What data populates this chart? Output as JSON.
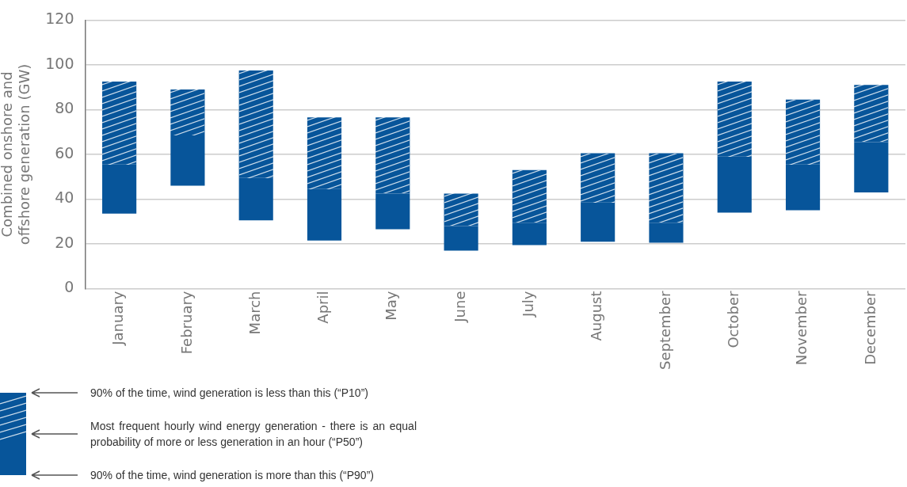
{
  "chart_data": {
    "type": "bar",
    "ylabel": "Combined onshore and offshore generation (GW)",
    "categories": [
      "January",
      "February",
      "March",
      "April",
      "May",
      "June",
      "July",
      "August",
      "September",
      "October",
      "November",
      "December"
    ],
    "series": [
      {
        "color": "#07559a",
        "base": [
          33.5,
          46,
          30.5,
          21.5,
          26.5,
          17,
          19.5,
          21,
          20.5,
          34,
          35,
          43
        ],
        "values": [
          22,
          22.5,
          19,
          23,
          16,
          11,
          10,
          17.5,
          9,
          25,
          20.5,
          22.5
        ]
      },
      {
        "color": "#07559a",
        "base": [
          55.5,
          68.5,
          49.5,
          44.5,
          42.5,
          28,
          29.5,
          38.5,
          29.5,
          59,
          55.5,
          65.5
        ],
        "values": [
          37,
          20.5,
          48,
          32,
          34,
          14.5,
          23.5,
          22,
          31,
          33.5,
          29,
          25.5
        ]
      }
    ],
    "ylim": [
      0,
      120
    ],
    "yticks": [
      0,
      20,
      40,
      60,
      80,
      100,
      120
    ],
    "grid": "y",
    "annotations": [
      "90% of the time, wind generation is less than this (“P10”)",
      "Most frequent hourly wind energy generation - there is an equal probability of more or less generation in an hour (“P50”)",
      "90% of the time, wind generation is more than this (“P90”)"
    ]
  }
}
